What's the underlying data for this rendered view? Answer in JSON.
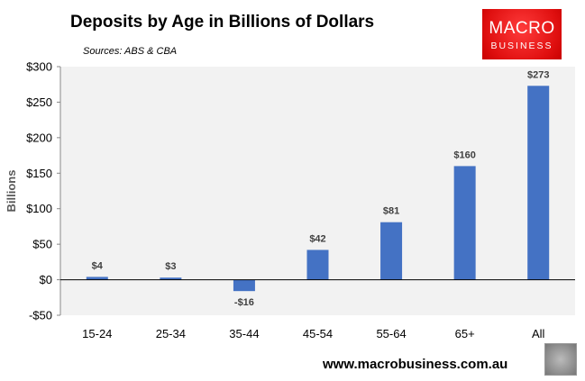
{
  "chart_data": {
    "type": "bar",
    "title": "Deposits by Age in Billions of Dollars",
    "subtitle": "Sources: ABS & CBA",
    "xlabel": "",
    "ylabel": "Billions",
    "categories": [
      "15-24",
      "25-34",
      "35-44",
      "45-54",
      "55-64",
      "65+",
      "All"
    ],
    "values": [
      4,
      3,
      -16,
      42,
      81,
      160,
      273
    ],
    "data_labels": [
      "$4",
      "$3",
      "-$16",
      "$42",
      "$81",
      "$160",
      "$273"
    ],
    "ylim": [
      -50,
      300
    ],
    "yticks": [
      -50,
      0,
      50,
      100,
      150,
      200,
      250,
      300
    ],
    "ytick_labels": [
      "-$50",
      "$0",
      "$50",
      "$100",
      "$150",
      "$200",
      "$250",
      "$300"
    ],
    "bar_color": "#4472C4",
    "grid": false
  },
  "logo": {
    "line1": "MACRO",
    "line2": "BUSINESS"
  },
  "footer": {
    "site": "www.macrobusiness.com.au"
  }
}
